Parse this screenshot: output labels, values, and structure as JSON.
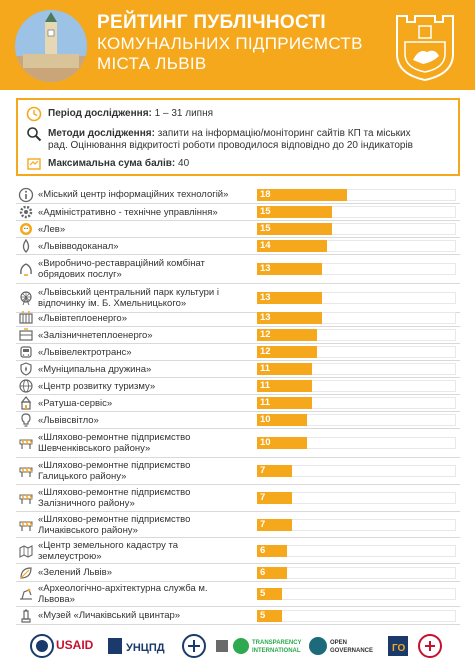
{
  "header": {
    "title_line1": "РЕЙТИНГ ПУБЛІЧНОСТІ",
    "title_line2": "КОМУНАЛЬНИХ ПІДПРИЄМСТВ",
    "title_line3": "МІСТА ЛЬВІВ"
  },
  "info": {
    "period_label": "Період дослідження:",
    "period_value": "1 – 31 липня",
    "methods_label": "Методи дослідження:",
    "methods_value_1": "запити на інформацію/моніторинг сайтів КП та міських",
    "methods_value_2": "рад. Оцінювання відкритості роботи проводилося відповідно до 20 індикаторів",
    "max_label": "Максимальна сума балів:",
    "max_value": "40"
  },
  "chart_data": {
    "type": "bar",
    "orientation": "horizontal",
    "max": 40,
    "categories": [
      "«Міський центр інформаційних технологій»",
      "«Адміністративно - технічне управління»",
      "«Лев»",
      "«Львівводоканал»",
      "«Виробничо-реставраційний комбінат обрядових послуг»",
      "«Львівський центральний парк культури і відпочинку ім. Б. Хмельницького»",
      "«Львівтеплоенерго»",
      "«Залізничнетеплоенерго»",
      "«Львівелектротранс»",
      "«Муніципальна дружина»",
      "«Центр розвитку туризму»",
      "«Ратуша-сервіс»",
      "«Львівсвітло»",
      "«Шляхово-ремонтне підприємство Шевченківського району»",
      "«Шляхово-ремонтне підприємство Галицького району»",
      "«Шляхово-ремонтне підприємство Залізничного району»",
      "«Шляхово-ремонтне підприємство Личаківського району»",
      "«Центр земельного кадастру та землеустрою»",
      "«Зелений Львів»",
      "«Археологічно-архітектурна служба м. Львова»",
      "«Музей «Личаківський цвинтар»"
    ],
    "values": [
      18,
      15,
      15,
      14,
      13,
      13,
      13,
      12,
      12,
      11,
      11,
      11,
      10,
      10,
      7,
      7,
      7,
      6,
      6,
      5,
      5
    ],
    "label_lines": [
      [
        "«Міський центр інформаційних технологій»"
      ],
      [
        "«Адміністративно - технічне управління»"
      ],
      [
        "«Лев»"
      ],
      [
        "«Львівводоканал»"
      ],
      [
        "«Виробничо-реставраційний комбінат",
        "обрядових послуг»"
      ],
      [
        "«Львівський центральний парк культури і",
        "відпочинку ім. Б. Хмельницького»"
      ],
      [
        "«Львівтеплоенерго»"
      ],
      [
        "«Залізничнетеплоенерго»"
      ],
      [
        "«Львівелектротранс»"
      ],
      [
        "«Муніципальна дружина»"
      ],
      [
        "«Центр розвитку туризму»"
      ],
      [
        "«Ратуша-сервіс»"
      ],
      [
        "«Львівсвітло»"
      ],
      [
        "«Шляхово-ремонтне підприємство",
        "Шевченківського району»"
      ],
      [
        "«Шляхово-ремонтне підприємство",
        "Галицького району»"
      ],
      [
        "«Шляхово-ремонтне підприємство",
        "Залізничного району»"
      ],
      [
        "«Шляхово-ремонтне підприємство",
        "Личаківського району»"
      ],
      [
        "«Центр земельного кадастру та",
        "землеустрою»"
      ],
      [
        "«Зелений Львів»"
      ],
      [
        "«Археологічно-архітектурна служба м.",
        "Львова»"
      ],
      [
        " «Музей «Личаківський цвинтар»"
      ]
    ],
    "icons": [
      "info-icon",
      "gear-icon",
      "lion-icon",
      "water-drop-icon",
      "wreath-icon",
      "ferris-wheel-icon",
      "radiator-icon",
      "pipe-icon",
      "tram-icon",
      "police-badge-icon",
      "globe-icon",
      "city-hall-icon",
      "lightbulb-icon",
      "road-barrier-icon",
      "road-barrier-icon",
      "road-barrier-icon",
      "road-barrier-icon",
      "map-icon",
      "leaf-icon",
      "excavation-icon",
      "monument-icon"
    ],
    "bar_color": "#f5a81c"
  },
  "footer": {
    "logos": [
      "USAID",
      "УНЦПД",
      "",
      "",
      "TRANSPARENCY INTERNATIONAL",
      "OPEN GOVERNANCE",
      "",
      ""
    ]
  }
}
